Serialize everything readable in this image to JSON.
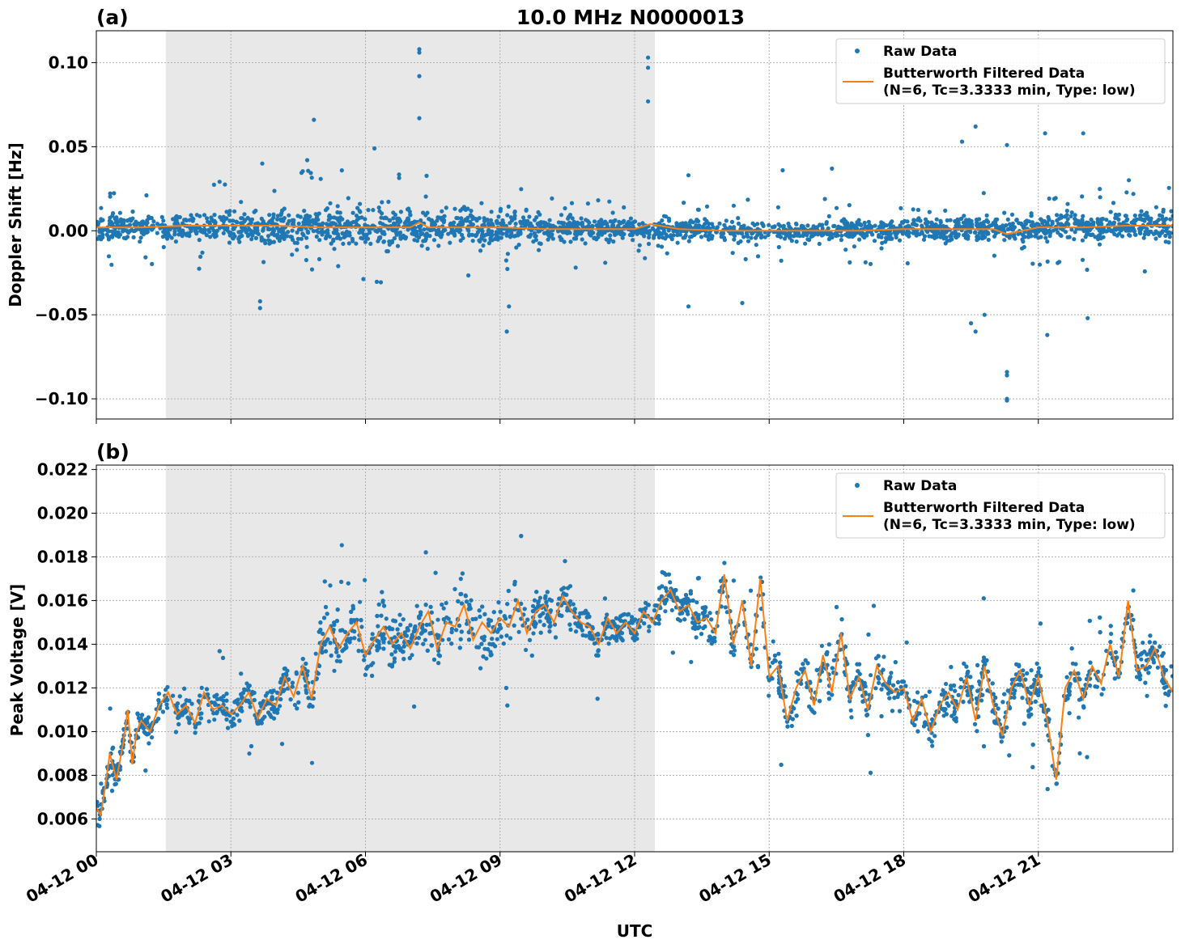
{
  "figure": {
    "title": "10.0 MHz N0000013",
    "xlabel": "UTC"
  },
  "colors": {
    "raw": "#1f77b4",
    "filtered": "#ff7f0e",
    "shade": "#e8e8e8",
    "grid": "#b0b0b0"
  },
  "chart_data": [
    {
      "type": "scatter",
      "panel_label": "(a)",
      "ylabel": "Doppler Shift [Hz]",
      "xlim_hours": [
        0,
        24
      ],
      "ylim": [
        -0.112,
        0.119
      ],
      "yticks": [
        0.1,
        0.05,
        0.0,
        -0.05,
        -0.1
      ],
      "ytick_labels": [
        "0.10",
        "0.05",
        "0.00",
        "−0.05",
        "−0.10"
      ],
      "xticks_hours": [
        0,
        3,
        6,
        9,
        12,
        15,
        18,
        21
      ],
      "xtick_labels": [
        "04-12 00",
        "04-12 03",
        "04-12 06",
        "04-12 09",
        "04-12 12",
        "04-12 15",
        "04-12 18",
        "04-12 21"
      ],
      "shaded_interval_hours": [
        1.55,
        12.45
      ],
      "grid": true,
      "legend": {
        "placement": "upper-right",
        "entries": [
          "Raw Data",
          "Butterworth Filtered Data",
          "(N=6, Tc=3.3333 min, Type: low)"
        ]
      },
      "series": [
        {
          "name": "Raw Data",
          "marker": "dot",
          "band": {
            "x": [
              0,
              1,
              2,
              3,
              4,
              5,
              6,
              7,
              8,
              9,
              10,
              11,
              12,
              13,
              14,
              15,
              16,
              17,
              18,
              19,
              20,
              21,
              22,
              23,
              24
            ],
            "center": [
              0.002,
              0.002,
              0.003,
              0.002,
              0.002,
              0.002,
              0.002,
              0.002,
              0.002,
              0.002,
              0.001,
              0.001,
              0.001,
              0.001,
              0.0,
              0.0,
              0.0,
              0.0,
              0.001,
              0.001,
              0.001,
              0.002,
              0.002,
              0.003,
              0.003
            ],
            "half_width": [
              0.012,
              0.012,
              0.014,
              0.016,
              0.018,
              0.018,
              0.019,
              0.019,
              0.018,
              0.017,
              0.014,
              0.012,
              0.01,
              0.01,
              0.01,
              0.01,
              0.01,
              0.011,
              0.011,
              0.012,
              0.012,
              0.012,
              0.014,
              0.015,
              0.015
            ]
          },
          "outliers": [
            [
              4.85,
              0.066
            ],
            [
              7.2,
              0.108
            ],
            [
              7.2,
              0.106
            ],
            [
              7.2,
              0.092
            ],
            [
              7.2,
              0.067
            ],
            [
              12.3,
              0.103
            ],
            [
              12.3,
              0.097
            ],
            [
              12.3,
              0.077
            ],
            [
              3.65,
              -0.042
            ],
            [
              3.65,
              -0.046
            ],
            [
              9.2,
              -0.045
            ],
            [
              9.15,
              -0.06
            ],
            [
              6.2,
              0.049
            ],
            [
              20.3,
              -0.084
            ],
            [
              20.3,
              -0.086
            ],
            [
              20.3,
              -0.1
            ],
            [
              20.3,
              -0.101
            ],
            [
              19.6,
              0.062
            ],
            [
              19.3,
              0.053
            ],
            [
              21.15,
              0.058
            ],
            [
              22.0,
              0.058
            ],
            [
              22.1,
              -0.052
            ],
            [
              19.6,
              -0.06
            ],
            [
              20.3,
              0.051
            ],
            [
              21.2,
              -0.062
            ],
            [
              13.2,
              -0.045
            ],
            [
              14.4,
              -0.043
            ],
            [
              19.5,
              -0.055
            ],
            [
              19.8,
              -0.05
            ],
            [
              4.7,
              0.042
            ],
            [
              3.7,
              0.04
            ],
            [
              16.4,
              0.037
            ],
            [
              15.3,
              0.036
            ],
            [
              13.2,
              0.033
            ]
          ]
        },
        {
          "name": "Butterworth Filtered Data",
          "x": [
            0,
            1,
            2,
            3,
            4,
            5,
            6,
            7,
            7.2,
            7.4,
            8,
            9,
            10,
            11,
            12,
            12.35,
            13,
            14,
            15,
            16,
            17,
            18,
            19,
            20,
            20.3,
            21,
            22,
            23,
            24
          ],
          "y": [
            0.002,
            0.002,
            0.003,
            0.003,
            0.003,
            0.002,
            0.002,
            0.002,
            0.005,
            0.002,
            0.002,
            0.002,
            0.001,
            0.001,
            0.001,
            0.004,
            0.001,
            0.0,
            0.0,
            0.0,
            0.0,
            0.001,
            0.001,
            0.001,
            -0.002,
            0.002,
            0.002,
            0.003,
            0.003
          ]
        }
      ]
    },
    {
      "type": "scatter",
      "panel_label": "(b)",
      "ylabel": "Peak Voltage [V]",
      "xlim_hours": [
        0,
        24
      ],
      "ylim": [
        0.0045,
        0.0222
      ],
      "yticks": [
        0.022,
        0.02,
        0.018,
        0.016,
        0.014,
        0.012,
        0.01,
        0.008,
        0.006
      ],
      "ytick_labels": [
        "0.022",
        "0.020",
        "0.018",
        "0.016",
        "0.014",
        "0.012",
        "0.010",
        "0.008",
        "0.006"
      ],
      "xticks_hours": [
        0,
        3,
        6,
        9,
        12,
        15,
        18,
        21
      ],
      "xtick_labels": [
        "04-12 00",
        "04-12 03",
        "04-12 06",
        "04-12 09",
        "04-12 12",
        "04-12 15",
        "04-12 18",
        "04-12 21"
      ],
      "shaded_interval_hours": [
        1.55,
        12.45
      ],
      "grid": true,
      "legend": {
        "placement": "upper-right",
        "entries": [
          "Raw Data",
          "Butterworth Filtered Data",
          "(N=6, Tc=3.3333 min, Type: low)"
        ]
      },
      "series": [
        {
          "name": "Raw Data",
          "marker": "dot",
          "spread": [
            [
              0,
              0.0012
            ],
            [
              2,
              0.0012
            ],
            [
              4.5,
              0.0014
            ],
            [
              5,
              0.0022
            ],
            [
              6,
              0.002
            ],
            [
              8,
              0.0028
            ],
            [
              9,
              0.0022
            ],
            [
              11,
              0.0014
            ],
            [
              12.5,
              0.0012
            ],
            [
              14,
              0.0016
            ],
            [
              15,
              0.0018
            ],
            [
              18,
              0.0016
            ],
            [
              21,
              0.0016
            ],
            [
              24,
              0.0016
            ]
          ]
        },
        {
          "name": "Butterworth Filtered Data",
          "x": [
            0,
            0.1,
            0.2,
            0.3,
            0.45,
            0.6,
            0.7,
            0.8,
            0.9,
            1.0,
            1.2,
            1.4,
            1.6,
            1.8,
            2.0,
            2.2,
            2.4,
            2.6,
            2.8,
            3.0,
            3.2,
            3.4,
            3.6,
            3.8,
            4.0,
            4.2,
            4.4,
            4.6,
            4.8,
            5.0,
            5.2,
            5.4,
            5.6,
            5.8,
            6.0,
            6.2,
            6.4,
            6.6,
            6.8,
            7.0,
            7.2,
            7.4,
            7.6,
            7.8,
            8.0,
            8.2,
            8.4,
            8.6,
            8.8,
            9.0,
            9.2,
            9.4,
            9.6,
            9.8,
            10.0,
            10.2,
            10.4,
            10.6,
            10.8,
            11.0,
            11.2,
            11.4,
            11.6,
            11.8,
            12.0,
            12.2,
            12.4,
            12.6,
            12.8,
            13.0,
            13.2,
            13.4,
            13.6,
            13.8,
            14.0,
            14.2,
            14.4,
            14.6,
            14.8,
            15.0,
            15.2,
            15.4,
            15.6,
            15.8,
            16.0,
            16.2,
            16.4,
            16.6,
            16.8,
            17.0,
            17.2,
            17.4,
            17.6,
            17.8,
            18.0,
            18.2,
            18.4,
            18.6,
            18.8,
            19.0,
            19.2,
            19.4,
            19.6,
            19.8,
            20.0,
            20.2,
            20.4,
            20.6,
            20.8,
            21.0,
            21.2,
            21.4,
            21.6,
            21.8,
            22.0,
            22.2,
            22.4,
            22.6,
            22.8,
            23.0,
            23.2,
            23.4,
            23.6,
            23.8,
            24.0
          ],
          "y": [
            0.0065,
            0.0062,
            0.0075,
            0.009,
            0.0078,
            0.0095,
            0.011,
            0.0085,
            0.01,
            0.0105,
            0.01,
            0.0112,
            0.0118,
            0.0108,
            0.0112,
            0.0104,
            0.0118,
            0.011,
            0.0112,
            0.0108,
            0.0112,
            0.0118,
            0.0106,
            0.0115,
            0.0112,
            0.0125,
            0.0116,
            0.013,
            0.0115,
            0.014,
            0.0148,
            0.0138,
            0.0145,
            0.015,
            0.0135,
            0.0142,
            0.0148,
            0.014,
            0.0145,
            0.0138,
            0.0148,
            0.0155,
            0.0138,
            0.015,
            0.0148,
            0.0158,
            0.0142,
            0.015,
            0.0145,
            0.0152,
            0.0148,
            0.016,
            0.0145,
            0.0155,
            0.0158,
            0.015,
            0.0162,
            0.0155,
            0.015,
            0.0148,
            0.014,
            0.0152,
            0.0145,
            0.015,
            0.0145,
            0.0155,
            0.015,
            0.016,
            0.0165,
            0.0155,
            0.0158,
            0.015,
            0.0152,
            0.0145,
            0.0172,
            0.014,
            0.016,
            0.013,
            0.017,
            0.0125,
            0.013,
            0.0105,
            0.012,
            0.0128,
            0.0112,
            0.0135,
            0.0118,
            0.0145,
            0.0115,
            0.0125,
            0.011,
            0.013,
            0.0122,
            0.0118,
            0.012,
            0.0105,
            0.0115,
            0.01,
            0.0112,
            0.0118,
            0.011,
            0.0125,
            0.0105,
            0.013,
            0.0112,
            0.0098,
            0.012,
            0.0128,
            0.0112,
            0.0125,
            0.0105,
            0.0078,
            0.012,
            0.0128,
            0.0115,
            0.013,
            0.0122,
            0.014,
            0.0125,
            0.016,
            0.0128,
            0.013,
            0.0138,
            0.0125,
            0.0118
          ]
        }
      ]
    }
  ]
}
